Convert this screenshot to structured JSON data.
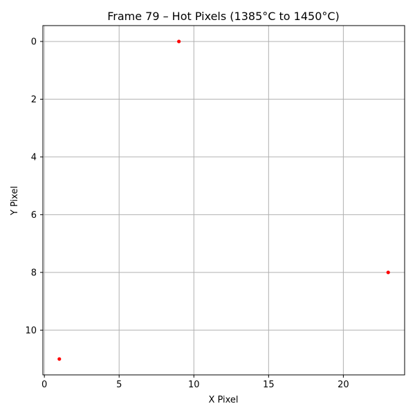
{
  "chart_data": {
    "type": "scatter",
    "title": "Frame 79 – Hot Pixels (1385°C to 1450°C)",
    "xlabel": "X Pixel",
    "ylabel": "Y Pixel",
    "xlim": [
      -0.1,
      24.1
    ],
    "ylim": [
      11.55,
      -0.55
    ],
    "y_inverted": true,
    "xticks": [
      0,
      5,
      10,
      15,
      20
    ],
    "yticks": [
      0,
      2,
      4,
      6,
      8,
      10
    ],
    "grid": true,
    "marker_color": "#ff0000",
    "grid_color": "#b0b0b0",
    "points": [
      {
        "x": 9,
        "y": 0
      },
      {
        "x": 23,
        "y": 8
      },
      {
        "x": 1,
        "y": 11
      }
    ]
  }
}
